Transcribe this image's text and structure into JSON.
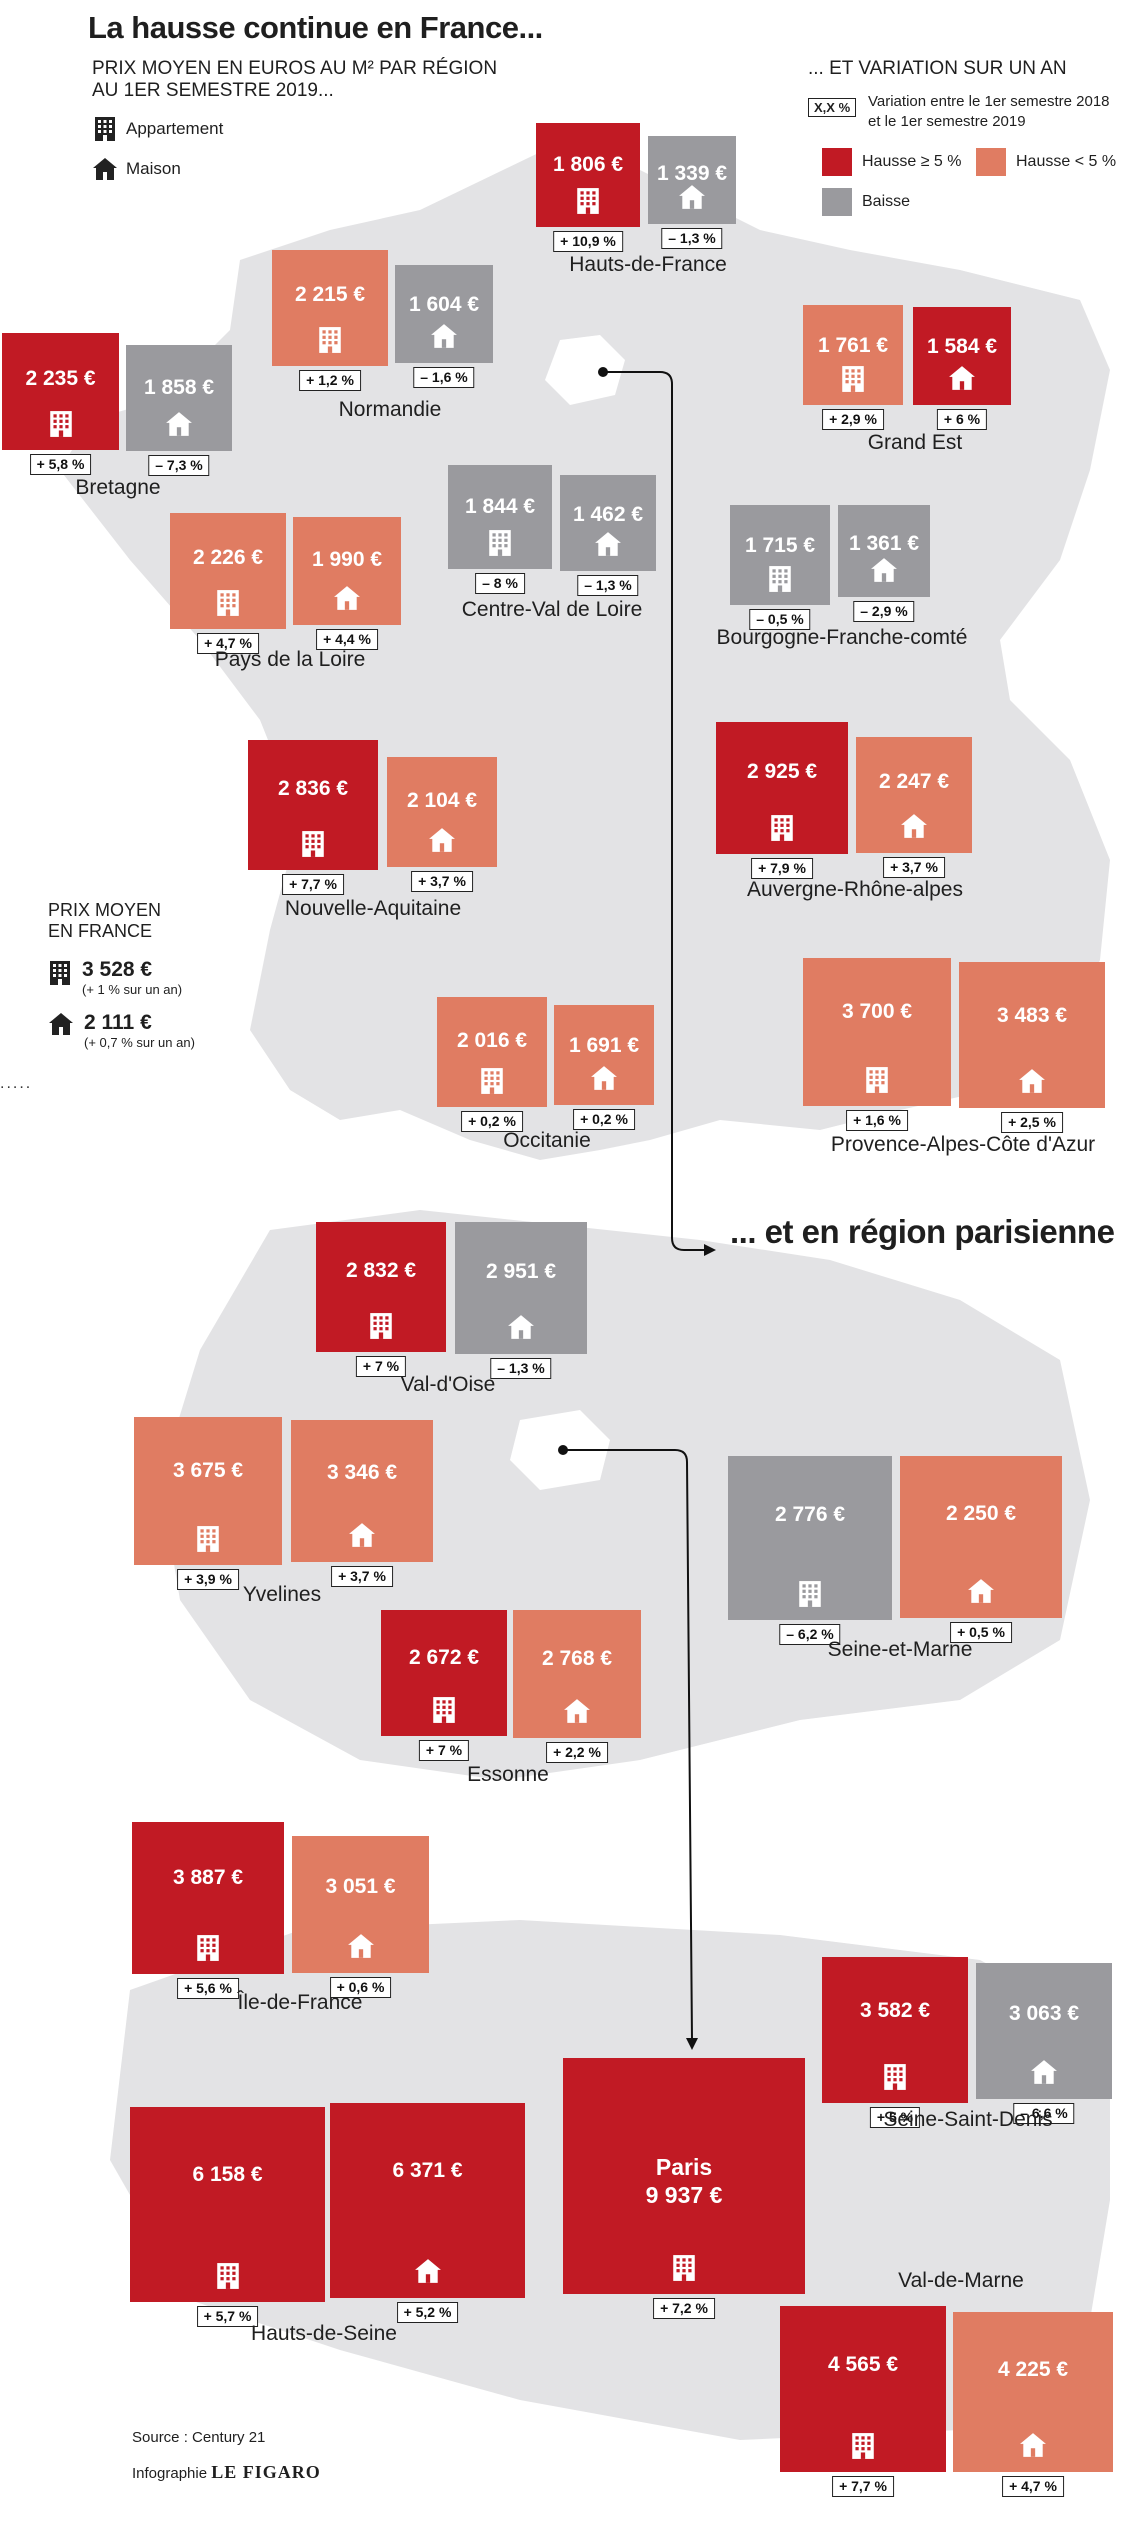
{
  "title": "La hausse continue en France...",
  "subtitle": "PRIX MOYEN EN EUROS AU M² PAR RÉGION AU 1ER SEMESTRE 2019...",
  "legend_left": {
    "apartment": "Appartement",
    "house": "Maison"
  },
  "legend_right": {
    "heading": "... ET VARIATION SUR UN AN",
    "sample": "X,X %",
    "sample_desc": "Variation entre le 1er semestre 2018 et le 1er semestre 2019",
    "up_strong": "Hausse ≥ 5 %",
    "up_weak": "Hausse < 5 %",
    "down": "Baisse"
  },
  "colors": {
    "up_strong": "#c11a24",
    "up_weak": "#e07c62",
    "down": "#9a9a9e",
    "map": "#e3e3e5"
  },
  "national": {
    "label": "PRIX MOYEN EN FRANCE",
    "apartment_price": "3 528 €",
    "apartment_sub": "(+ 1 % sur un an)",
    "house_price": "2 111 €",
    "house_sub": "(+ 0,7 % sur un an)"
  },
  "section2_title": "... et en région parisienne",
  "source": "Source : Century 21",
  "credit_prefix": "Infographie",
  "credit_brand": "LE FIGARO",
  "regions": [
    {
      "name": "Hauts-de-France",
      "apt": {
        "price": "1 806 €",
        "var": "+ 10,9 %",
        "cat": "up_strong"
      },
      "house": {
        "price": "1 339 €",
        "var": "– 1,3 %",
        "cat": "down"
      }
    },
    {
      "name": "Normandie",
      "apt": {
        "price": "2 215 €",
        "var": "+ 1,2 %",
        "cat": "up_weak"
      },
      "house": {
        "price": "1 604 €",
        "var": "– 1,6 %",
        "cat": "down"
      }
    },
    {
      "name": "Grand Est",
      "apt": {
        "price": "1 761 €",
        "var": "+ 2,9 %",
        "cat": "up_weak"
      },
      "house": {
        "price": "1 584 €",
        "var": "+ 6 %",
        "cat": "up_strong"
      }
    },
    {
      "name": "Bretagne",
      "apt": {
        "price": "2 235 €",
        "var": "+ 5,8 %",
        "cat": "up_strong"
      },
      "house": {
        "price": "1 858 €",
        "var": "– 7,3 %",
        "cat": "down"
      }
    },
    {
      "name": "Centre-Val de Loire",
      "apt": {
        "price": "1 844 €",
        "var": "– 8 %",
        "cat": "down"
      },
      "house": {
        "price": "1 462 €",
        "var": "– 1,3 %",
        "cat": "down"
      }
    },
    {
      "name": "Pays de la Loire",
      "apt": {
        "price": "2 226 €",
        "var": "+ 4,7 %",
        "cat": "up_weak"
      },
      "house": {
        "price": "1 990 €",
        "var": "+ 4,4 %",
        "cat": "up_weak"
      }
    },
    {
      "name": "Bourgogne-Franche-comté",
      "apt": {
        "price": "1 715 €",
        "var": "– 0,5 %",
        "cat": "down"
      },
      "house": {
        "price": "1 361 €",
        "var": "– 2,9 %",
        "cat": "down"
      }
    },
    {
      "name": "Nouvelle-Aquitaine",
      "apt": {
        "price": "2 836 €",
        "var": "+ 7,7 %",
        "cat": "up_strong"
      },
      "house": {
        "price": "2 104 €",
        "var": "+ 3,7 %",
        "cat": "up_weak"
      }
    },
    {
      "name": "Auvergne-Rhône-alpes",
      "apt": {
        "price": "2 925 €",
        "var": "+ 7,9 %",
        "cat": "up_strong"
      },
      "house": {
        "price": "2 247 €",
        "var": "+ 3,7 %",
        "cat": "up_weak"
      }
    },
    {
      "name": "Occitanie",
      "apt": {
        "price": "2 016 €",
        "var": "+ 0,2 %",
        "cat": "up_weak"
      },
      "house": {
        "price": "1 691 €",
        "var": "+ 0,2 %",
        "cat": "up_weak"
      }
    },
    {
      "name": "Provence-Alpes-Côte d'Azur",
      "apt": {
        "price": "3 700 €",
        "var": "+ 1,6 %",
        "cat": "up_weak"
      },
      "house": {
        "price": "3 483 €",
        "var": "+ 2,5 %",
        "cat": "up_weak"
      }
    },
    {
      "name": "Val-d'Oise",
      "apt": {
        "price": "2 832 €",
        "var": "+ 7 %",
        "cat": "up_strong"
      },
      "house": {
        "price": "2 951 €",
        "var": "– 1,3 %",
        "cat": "down"
      }
    },
    {
      "name": "Yvelines",
      "apt": {
        "price": "3 675 €",
        "var": "+ 3,9 %",
        "cat": "up_weak"
      },
      "house": {
        "price": "3 346 €",
        "var": "+ 3,7 %",
        "cat": "up_weak"
      }
    },
    {
      "name": "Seine-et-Marne",
      "apt": {
        "price": "2 776 €",
        "var": "– 6,2 %",
        "cat": "down"
      },
      "house": {
        "price": "2 250 €",
        "var": "+ 0,5 %",
        "cat": "up_weak"
      }
    },
    {
      "name": "Essonne",
      "apt": {
        "price": "2 672 €",
        "var": "+ 7 %",
        "cat": "up_strong"
      },
      "house": {
        "price": "2 768 €",
        "var": "+ 2,2 %",
        "cat": "up_weak"
      }
    },
    {
      "name": "Île-de-France",
      "apt": {
        "price": "3 887 €",
        "var": "+ 5,6 %",
        "cat": "up_strong"
      },
      "house": {
        "price": "3 051 €",
        "var": "+ 0,6 %",
        "cat": "up_weak"
      }
    },
    {
      "name": "Seine-Saint-Denis",
      "apt": {
        "price": "3 582 €",
        "var": "+ 5 %",
        "cat": "up_strong"
      },
      "house": {
        "price": "3 063 €",
        "var": "– 6,6 %",
        "cat": "down"
      }
    },
    {
      "name": "Hauts-de-Seine",
      "apt": {
        "price": "6 158 €",
        "var": "+ 5,7 %",
        "cat": "up_strong"
      },
      "house": {
        "price": "6 371 €",
        "var": "+ 5,2 %",
        "cat": "up_strong"
      }
    },
    {
      "name": "Val-de-Marne",
      "apt": {
        "price": "4 565 €",
        "var": "+ 7,7 %",
        "cat": "up_strong"
      },
      "house": {
        "price": "4 225 €",
        "var": "+ 4,7 %",
        "cat": "up_weak"
      }
    }
  ],
  "paris": {
    "name": "Paris",
    "price": "9 937 €",
    "var": "+ 7,2 %",
    "cat": "up_strong"
  }
}
